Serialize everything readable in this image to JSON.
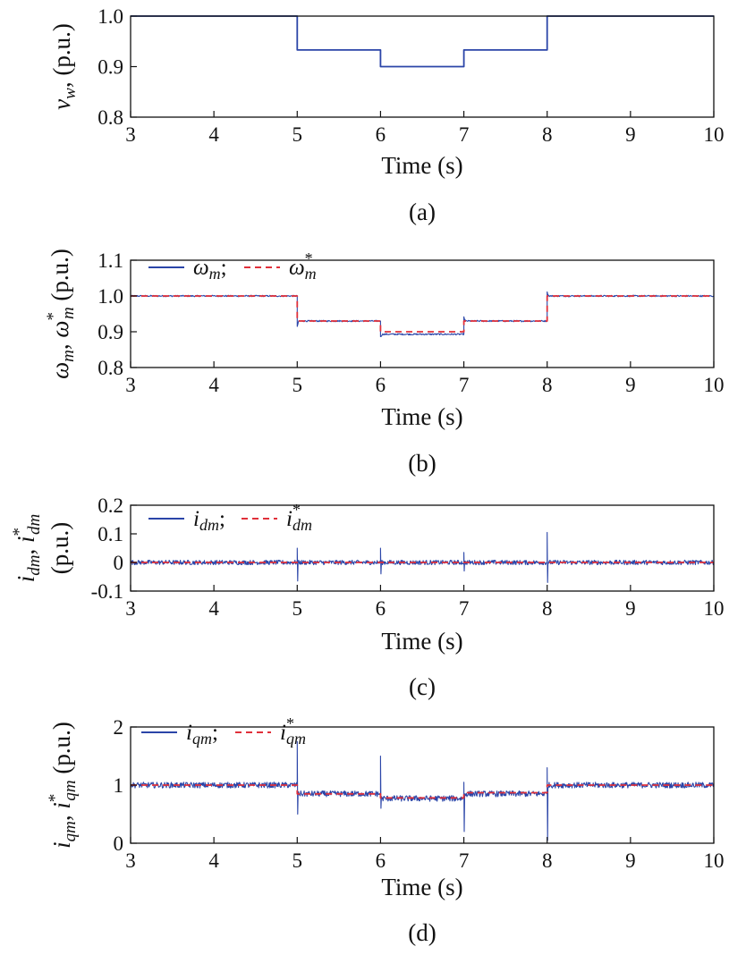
{
  "figure": {
    "subplot_labels": [
      "(a)",
      "(b)",
      "(c)",
      "(d)"
    ]
  },
  "chart_data": [
    {
      "id": "a",
      "type": "line",
      "caption": "(a)",
      "xlabel": "Time (s)",
      "ylabel": "v_w (p.u.)",
      "xlim": [
        3,
        10
      ],
      "ylim": [
        0.8,
        1.0
      ],
      "xticks": [
        3,
        4,
        5,
        6,
        7,
        8,
        9,
        10
      ],
      "yticks": [
        {
          "v": 0.8,
          "t": "0.8"
        },
        {
          "v": 0.9,
          "t": "0.9"
        },
        {
          "v": 1.0,
          "t": "1.0"
        }
      ],
      "legend": [],
      "series": [
        {
          "style": "solid",
          "color": "#2b45a8",
          "x": [
            3,
            5,
            5,
            6,
            6,
            7,
            7,
            8,
            8,
            10
          ],
          "y": [
            1.0,
            1.0,
            0.933,
            0.933,
            0.9,
            0.9,
            0.933,
            0.933,
            1.0,
            1.0
          ]
        }
      ]
    },
    {
      "id": "b",
      "type": "line",
      "caption": "(b)",
      "xlabel": "Time (s)",
      "ylabel": "ω_m, ω*_m (p.u.)",
      "xlim": [
        3,
        10
      ],
      "ylim": [
        0.8,
        1.1
      ],
      "xticks": [
        3,
        4,
        5,
        6,
        7,
        8,
        9,
        10
      ],
      "yticks": [
        {
          "v": 0.8,
          "t": "0.8"
        },
        {
          "v": 0.9,
          "t": "0.9"
        },
        {
          "v": 1.0,
          "t": "1.0"
        },
        {
          "v": 1.1,
          "t": "1.1"
        }
      ],
      "legend": [
        {
          "label": "ω_m;",
          "style": "solid",
          "color": "#2b45a8"
        },
        {
          "label": "ω*_m",
          "style": "dashed",
          "color": "#e0303a"
        }
      ],
      "series": [
        {
          "style": "solid",
          "color": "#2b45a8",
          "noise": 0.002,
          "x": [
            3,
            5,
            5,
            5.02,
            6,
            6,
            6.02,
            7,
            7,
            7.02,
            8,
            8,
            8.02,
            10
          ],
          "y": [
            1.0,
            1.0,
            0.915,
            0.93,
            0.93,
            0.885,
            0.893,
            0.893,
            0.94,
            0.93,
            0.93,
            1.01,
            1.0,
            1.0
          ]
        },
        {
          "style": "dashed",
          "color": "#e0303a",
          "x": [
            3,
            5,
            5,
            6,
            6,
            7,
            7,
            8,
            8,
            10
          ],
          "y": [
            1.0,
            1.0,
            0.93,
            0.93,
            0.9,
            0.9,
            0.93,
            0.93,
            1.0,
            1.0
          ]
        }
      ]
    },
    {
      "id": "c",
      "type": "line",
      "caption": "(c)",
      "xlabel": "Time (s)",
      "ylabel": "i_dm, i*_dm (p.u.)",
      "xlim": [
        3,
        10
      ],
      "ylim": [
        -0.1,
        0.2
      ],
      "xticks": [
        3,
        4,
        5,
        6,
        7,
        8,
        9,
        10
      ],
      "yticks": [
        {
          "v": -0.1,
          "t": "-0.1"
        },
        {
          "v": 0,
          "t": "0"
        },
        {
          "v": 0.1,
          "t": "0.1"
        },
        {
          "v": 0.2,
          "t": "0.2"
        }
      ],
      "legend": [
        {
          "label": "i_dm;",
          "style": "solid",
          "color": "#2b45a8"
        },
        {
          "label": "i*_dm",
          "style": "dashed",
          "color": "#e0303a"
        }
      ],
      "series": [
        {
          "style": "solid",
          "color": "#2b45a8",
          "noise": 0.008,
          "x": [
            3,
            5,
            5,
            5.005,
            5.01,
            6,
            6,
            6.005,
            6.01,
            7,
            7,
            7.005,
            7.01,
            8,
            8,
            8.005,
            8.01,
            10
          ],
          "y": [
            0,
            0,
            0.05,
            -0.065,
            0,
            0,
            0.05,
            -0.04,
            0,
            0,
            0.035,
            -0.03,
            0,
            0,
            0.105,
            -0.07,
            0,
            0
          ]
        },
        {
          "style": "dashed",
          "color": "#e0303a",
          "x": [
            3,
            10
          ],
          "y": [
            0,
            0
          ]
        }
      ]
    },
    {
      "id": "d",
      "type": "line",
      "caption": "(d)",
      "xlabel": "Time (s)",
      "ylabel": "i_qm, i*_qm (p.u.)",
      "xlim": [
        3,
        10
      ],
      "ylim": [
        0,
        2
      ],
      "xticks": [
        3,
        4,
        5,
        6,
        7,
        8,
        9,
        10
      ],
      "yticks": [
        {
          "v": 0,
          "t": "0"
        },
        {
          "v": 1,
          "t": "1"
        },
        {
          "v": 2,
          "t": "2"
        }
      ],
      "legend": [
        {
          "label": "i_qm;",
          "style": "solid",
          "color": "#2b45a8"
        },
        {
          "label": "i*_qm",
          "style": "dashed",
          "color": "#e0303a"
        }
      ],
      "series": [
        {
          "style": "solid",
          "color": "#2b45a8",
          "noise": 0.05,
          "x": [
            3,
            5,
            5,
            5.005,
            5.01,
            6,
            6,
            6.005,
            6.01,
            7,
            7,
            7.005,
            7.01,
            8,
            8,
            8.005,
            8.01,
            10
          ],
          "y": [
            1.0,
            1.0,
            1.75,
            0.5,
            0.85,
            0.85,
            1.5,
            0.6,
            0.77,
            0.77,
            1.05,
            0.2,
            0.85,
            0.85,
            1.3,
            0.05,
            1.0,
            1.0
          ]
        },
        {
          "style": "dashed",
          "color": "#e0303a",
          "x": [
            3,
            5,
            5,
            6,
            6,
            7,
            7,
            8,
            8,
            10
          ],
          "y": [
            1.0,
            1.0,
            0.85,
            0.85,
            0.78,
            0.78,
            0.87,
            0.87,
            1.0,
            1.0
          ]
        }
      ]
    }
  ]
}
